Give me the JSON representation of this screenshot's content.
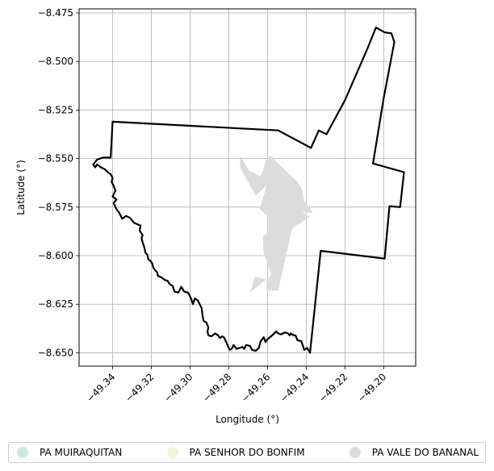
{
  "chart_data": {
    "type": "map",
    "xlabel": "Longitude (°)",
    "ylabel": "Latitude (°)",
    "xlim": [
      -49.35728,
      -49.18345
    ],
    "ylim": [
      -8.65688,
      -8.47291
    ],
    "x_ticks": [
      {
        "value": -49.34,
        "label": "−49.34"
      },
      {
        "value": -49.32,
        "label": "−49.32"
      },
      {
        "value": -49.3,
        "label": "−49.30"
      },
      {
        "value": -49.28,
        "label": "−49.28"
      },
      {
        "value": -49.26,
        "label": "−49.26"
      },
      {
        "value": -49.24,
        "label": "−49.24"
      },
      {
        "value": -49.22,
        "label": "−49.22"
      },
      {
        "value": -49.2,
        "label": "−49.20"
      }
    ],
    "y_ticks": [
      {
        "value": -8.475,
        "label": "−8.475"
      },
      {
        "value": -8.5,
        "label": "−8.500"
      },
      {
        "value": -8.525,
        "label": "−8.525"
      },
      {
        "value": -8.55,
        "label": "−8.550"
      },
      {
        "value": -8.575,
        "label": "−8.575"
      },
      {
        "value": -8.6,
        "label": "−8.600"
      },
      {
        "value": -8.625,
        "label": "−8.625"
      },
      {
        "value": -8.65,
        "label": "−8.650"
      }
    ],
    "grid": true,
    "legend_position": "bottom",
    "legend": [
      {
        "label": "PA MUIRAQUITAN",
        "color": "#cfe8df"
      },
      {
        "label": "PA SENHOR DO BONFIM",
        "color": "#eef6d8"
      },
      {
        "label": "PA VALE DO BANANAL",
        "color": "#dcdcdc"
      }
    ],
    "boundary_outline": {
      "color": "#000000",
      "lonlat": [
        [
          -49.34,
          -8.531
        ],
        [
          -49.2545,
          -8.5355
        ],
        [
          -49.2375,
          -8.5445
        ],
        [
          -49.2335,
          -8.5355
        ],
        [
          -49.2295,
          -8.5375
        ],
        [
          -49.22,
          -8.52
        ],
        [
          -49.208,
          -8.4925
        ],
        [
          -49.204,
          -8.4825
        ],
        [
          -49.1995,
          -8.485
        ],
        [
          -49.196,
          -8.4855
        ],
        [
          -49.1945,
          -8.49
        ],
        [
          -49.2,
          -8.519
        ],
        [
          -49.2055,
          -8.5525
        ],
        [
          -49.1895,
          -8.557
        ],
        [
          -49.1915,
          -8.575
        ],
        [
          -49.197,
          -8.5745
        ],
        [
          -49.1995,
          -8.6015
        ],
        [
          -49.2325,
          -8.5975
        ],
        [
          -49.238,
          -8.65
        ],
        [
          -49.2395,
          -8.6475
        ],
        [
          -49.241,
          -8.6485
        ],
        [
          -49.2425,
          -8.644
        ],
        [
          -49.2445,
          -8.6435
        ],
        [
          -49.2455,
          -8.641
        ],
        [
          -49.2465,
          -8.641
        ],
        [
          -49.248,
          -8.64
        ],
        [
          -49.2485,
          -8.641
        ],
        [
          -49.2495,
          -8.64
        ],
        [
          -49.251,
          -8.6395
        ],
        [
          -49.253,
          -8.6405
        ],
        [
          -49.2545,
          -8.64
        ],
        [
          -49.2555,
          -8.639
        ],
        [
          -49.257,
          -8.6405
        ],
        [
          -49.26,
          -8.643
        ],
        [
          -49.261,
          -8.6445
        ],
        [
          -49.262,
          -8.642
        ],
        [
          -49.2635,
          -8.644
        ],
        [
          -49.2645,
          -8.6475
        ],
        [
          -49.266,
          -8.649
        ],
        [
          -49.268,
          -8.6485
        ],
        [
          -49.269,
          -8.6465
        ],
        [
          -49.271,
          -8.646
        ],
        [
          -49.272,
          -8.648
        ],
        [
          -49.273,
          -8.647
        ],
        [
          -49.2745,
          -8.6475
        ],
        [
          -49.276,
          -8.648
        ],
        [
          -49.2775,
          -8.646
        ],
        [
          -49.2785,
          -8.648
        ],
        [
          -49.2795,
          -8.6485
        ],
        [
          -49.2805,
          -8.6465
        ],
        [
          -49.2815,
          -8.644
        ],
        [
          -49.2825,
          -8.642
        ],
        [
          -49.2835,
          -8.6415
        ],
        [
          -49.2845,
          -8.6425
        ],
        [
          -49.2855,
          -8.641
        ],
        [
          -49.287,
          -8.64
        ],
        [
          -49.289,
          -8.6415
        ],
        [
          -49.2905,
          -8.641
        ],
        [
          -49.291,
          -8.639
        ],
        [
          -49.2905,
          -8.637
        ],
        [
          -49.2915,
          -8.6345
        ],
        [
          -49.293,
          -8.6335
        ],
        [
          -49.2935,
          -8.631
        ],
        [
          -49.294,
          -8.627
        ],
        [
          -49.295,
          -8.625
        ],
        [
          -49.296,
          -8.623
        ],
        [
          -49.2975,
          -8.622
        ],
        [
          -49.2985,
          -8.625
        ],
        [
          -49.2995,
          -8.622
        ],
        [
          -49.301,
          -8.619
        ],
        [
          -49.303,
          -8.6185
        ],
        [
          -49.3045,
          -8.616
        ],
        [
          -49.306,
          -8.619
        ],
        [
          -49.308,
          -8.6185
        ],
        [
          -49.309,
          -8.6155
        ],
        [
          -49.31,
          -8.615
        ],
        [
          -49.311,
          -8.614
        ],
        [
          -49.3115,
          -8.613
        ],
        [
          -49.313,
          -8.6125
        ],
        [
          -49.315,
          -8.611
        ],
        [
          -49.3165,
          -8.6105
        ],
        [
          -49.317,
          -8.6085
        ],
        [
          -49.318,
          -8.6075
        ],
        [
          -49.319,
          -8.606
        ],
        [
          -49.3195,
          -8.604
        ],
        [
          -49.3205,
          -8.6025
        ],
        [
          -49.3215,
          -8.602
        ],
        [
          -49.322,
          -8.5995
        ],
        [
          -49.323,
          -8.5985
        ],
        [
          -49.3235,
          -8.596
        ],
        [
          -49.324,
          -8.5945
        ],
        [
          -49.3245,
          -8.593
        ],
        [
          -49.325,
          -8.591
        ],
        [
          -49.3245,
          -8.5895
        ],
        [
          -49.326,
          -8.587
        ],
        [
          -49.3255,
          -8.5845
        ],
        [
          -49.329,
          -8.583
        ],
        [
          -49.331,
          -8.5805
        ],
        [
          -49.333,
          -8.5795
        ],
        [
          -49.335,
          -8.581
        ],
        [
          -49.3365,
          -8.578
        ],
        [
          -49.338,
          -8.576
        ],
        [
          -49.3395,
          -8.573
        ],
        [
          -49.338,
          -8.571
        ],
        [
          -49.34,
          -8.5695
        ],
        [
          -49.3385,
          -8.5665
        ],
        [
          -49.3395,
          -8.564
        ],
        [
          -49.3405,
          -8.562
        ],
        [
          -49.34,
          -8.56
        ],
        [
          -49.341,
          -8.558
        ],
        [
          -49.3425,
          -8.557
        ],
        [
          -49.344,
          -8.5555
        ],
        [
          -49.346,
          -8.5545
        ],
        [
          -49.348,
          -8.553
        ],
        [
          -49.349,
          -8.5545
        ],
        [
          -49.35,
          -8.553
        ],
        [
          -49.348,
          -8.5505
        ],
        [
          -49.345,
          -8.5495
        ],
        [
          -49.341,
          -8.5495
        ],
        [
          -49.34,
          -8.531
        ]
      ]
    },
    "regions": [
      {
        "name": "PA VALE DO BANANAL",
        "color": "#dcdcdc",
        "lonlat": [
          [
            -49.2745,
            -8.548
          ],
          [
            -49.2695,
            -8.556
          ],
          [
            -49.264,
            -8.559
          ],
          [
            -49.263,
            -8.558
          ],
          [
            -49.2605,
            -8.5505
          ],
          [
            -49.2585,
            -8.5485
          ],
          [
            -49.255,
            -8.552
          ],
          [
            -49.2445,
            -8.562
          ],
          [
            -49.242,
            -8.566
          ],
          [
            -49.241,
            -8.572
          ],
          [
            -49.238,
            -8.5755
          ],
          [
            -49.2365,
            -8.578
          ],
          [
            -49.242,
            -8.5775
          ],
          [
            -49.238,
            -8.58
          ],
          [
            -49.2465,
            -8.5855
          ],
          [
            -49.2475,
            -8.587
          ],
          [
            -49.2545,
            -8.618
          ],
          [
            -49.2605,
            -8.618
          ],
          [
            -49.2605,
            -8.612
          ],
          [
            -49.2665,
            -8.611
          ],
          [
            -49.269,
            -8.619
          ],
          [
            -49.258,
            -8.61
          ],
          [
            -49.26,
            -8.604
          ],
          [
            -49.262,
            -8.5985
          ],
          [
            -49.2625,
            -8.59
          ],
          [
            -49.2595,
            -8.588
          ],
          [
            -49.2595,
            -8.58
          ],
          [
            -49.264,
            -8.576
          ],
          [
            -49.2605,
            -8.564
          ],
          [
            -49.266,
            -8.569
          ],
          [
            -49.274,
            -8.555
          ]
        ]
      }
    ]
  }
}
